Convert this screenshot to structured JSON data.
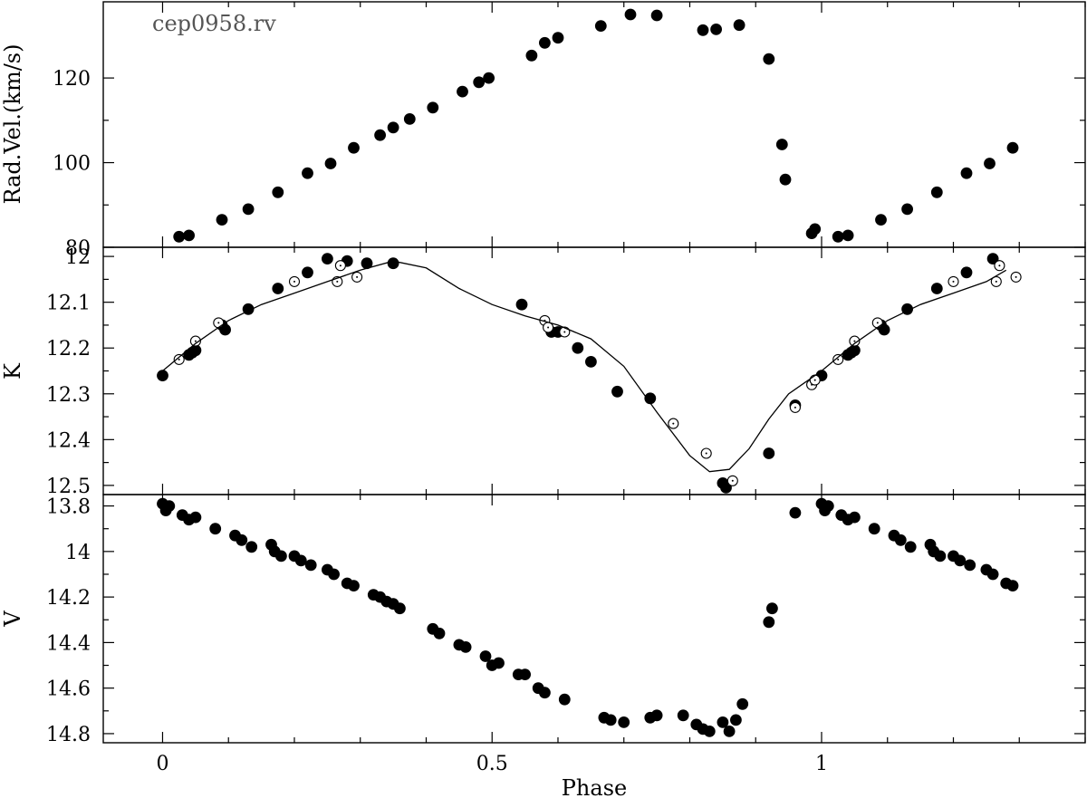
{
  "chart_data": {
    "type": "scatter",
    "xlabel": "Phase",
    "xlim": [
      -0.09,
      1.4
    ],
    "xticks": [
      0,
      0.5,
      1
    ],
    "xticklabels": [
      "0",
      "0.5",
      "1"
    ],
    "colors": {
      "axis": "#000000",
      "marker": "#000000",
      "tag": "#555555"
    },
    "panels": [
      {
        "id": "rv",
        "ylabel": "Rad.Vel.(km/s)",
        "annotation": "cep0958.rv",
        "ylim": [
          80,
          138
        ],
        "inverted": false,
        "yticks": [
          80,
          100,
          120
        ],
        "yticklabels": [
          "80",
          "100",
          "120"
        ],
        "series": [
          {
            "marker": "filled-circle",
            "x": [
              0.025,
              0.04,
              0.09,
              0.13,
              0.175,
              0.22,
              0.255,
              0.29,
              0.33,
              0.35,
              0.375,
              0.41,
              0.455,
              0.48,
              0.495,
              0.56,
              0.58,
              0.6,
              0.665,
              0.71,
              0.75,
              0.82,
              0.84,
              0.875,
              0.92,
              0.94,
              0.945,
              0.985,
              0.99,
              1.025,
              1.04,
              1.09,
              1.13,
              1.175,
              1.22,
              1.255,
              1.29
            ],
            "y": [
              82.5,
              82.8,
              86.5,
              89,
              93,
              97.5,
              99.8,
              103.5,
              106.5,
              108.3,
              110.3,
              113,
              116.8,
              119,
              120,
              125.3,
              128.3,
              129.5,
              132.3,
              135,
              134.8,
              131.3,
              131.5,
              132.5,
              124.5,
              104.3,
              96,
              83.3,
              84.3,
              82.5,
              82.8,
              86.5,
              89,
              93,
              97.5,
              99.8,
              103.5
            ]
          }
        ]
      },
      {
        "id": "K",
        "ylabel": "K",
        "ylim": [
          12.52,
          11.98
        ],
        "inverted": true,
        "yticks": [
          12,
          12.1,
          12.2,
          12.3,
          12.4,
          12.5
        ],
        "yticklabels": [
          "12",
          "12.1",
          "12.2",
          "12.3",
          "12.4",
          "12.5"
        ],
        "series": [
          {
            "marker": "filled-circle",
            "x": [
              0,
              0.04,
              0.045,
              0.05,
              0.09,
              0.095,
              0.13,
              0.175,
              0.22,
              0.25,
              0.28,
              0.31,
              0.35,
              0.545,
              0.59,
              0.6,
              0.63,
              0.65,
              0.69,
              0.74,
              0.85,
              0.855,
              0.92,
              0.96,
              1,
              1.04,
              1.045,
              1.05,
              1.09,
              1.095,
              1.13,
              1.175,
              1.22,
              1.26
            ],
            "y": [
              12.26,
              12.215,
              12.21,
              12.205,
              12.15,
              12.16,
              12.115,
              12.07,
              12.035,
              12.005,
              12.01,
              12.015,
              12.015,
              12.105,
              12.165,
              12.165,
              12.2,
              12.23,
              12.295,
              12.31,
              12.495,
              12.505,
              12.43,
              12.325,
              12.26,
              12.215,
              12.21,
              12.205,
              12.15,
              12.16,
              12.115,
              12.07,
              12.035,
              12.005
            ]
          },
          {
            "marker": "open-circle",
            "x": [
              0.025,
              0.05,
              0.085,
              0.2,
              0.265,
              0.27,
              0.295,
              0.58,
              0.585,
              0.61,
              0.775,
              0.825,
              0.865,
              0.96,
              0.985,
              0.99,
              1.025,
              1.05,
              1.085,
              1.2,
              1.265,
              1.27,
              1.295
            ],
            "y": [
              12.225,
              12.185,
              12.145,
              12.055,
              12.055,
              12.02,
              12.045,
              12.14,
              12.155,
              12.165,
              12.365,
              12.43,
              12.49,
              12.33,
              12.28,
              12.27,
              12.225,
              12.185,
              12.145,
              12.055,
              12.055,
              12.02,
              12.045
            ]
          },
          {
            "marker": "line",
            "x": [
              0,
              0.05,
              0.1,
              0.15,
              0.2,
              0.25,
              0.3,
              0.35,
              0.4,
              0.45,
              0.5,
              0.55,
              0.6,
              0.65,
              0.7,
              0.75,
              0.8,
              0.83,
              0.86,
              0.89,
              0.92,
              0.95,
              1,
              1.05,
              1.1,
              1.15,
              1.2,
              1.25,
              1.28
            ],
            "y": [
              12.25,
              12.19,
              12.14,
              12.105,
              12.08,
              12.055,
              12.03,
              12.01,
              12.025,
              12.07,
              12.105,
              12.13,
              12.15,
              12.18,
              12.24,
              12.34,
              12.435,
              12.47,
              12.465,
              12.42,
              12.355,
              12.3,
              12.25,
              12.19,
              12.14,
              12.105,
              12.08,
              12.055,
              12.03
            ]
          }
        ]
      },
      {
        "id": "V",
        "ylabel": "V",
        "ylim": [
          14.84,
          13.75
        ],
        "inverted": true,
        "yticks": [
          13.8,
          14,
          14.2,
          14.4,
          14.6,
          14.8
        ],
        "yticklabels": [
          "13.8",
          "14",
          "14.2",
          "14.4",
          "14.6",
          "14.8"
        ],
        "series": [
          {
            "marker": "filled-circle",
            "x": [
              0,
              0.005,
              0.01,
              0.03,
              0.04,
              0.05,
              0.08,
              0.11,
              0.12,
              0.135,
              0.165,
              0.17,
              0.18,
              0.2,
              0.21,
              0.225,
              0.25,
              0.26,
              0.28,
              0.29,
              0.32,
              0.33,
              0.34,
              0.35,
              0.36,
              0.41,
              0.42,
              0.45,
              0.46,
              0.49,
              0.5,
              0.51,
              0.54,
              0.55,
              0.57,
              0.58,
              0.61,
              0.67,
              0.68,
              0.7,
              0.74,
              0.75,
              0.79,
              0.81,
              0.82,
              0.83,
              0.85,
              0.86,
              0.87,
              0.88,
              0.92,
              0.925,
              0.96,
              1,
              1.005,
              1.01,
              1.03,
              1.04,
              1.05,
              1.08,
              1.11,
              1.12,
              1.135,
              1.165,
              1.17,
              1.18,
              1.2,
              1.21,
              1.225,
              1.25,
              1.26,
              1.28,
              1.29
            ],
            "y": [
              13.79,
              13.82,
              13.8,
              13.84,
              13.86,
              13.85,
              13.9,
              13.93,
              13.95,
              13.98,
              13.97,
              14,
              14.02,
              14.02,
              14.04,
              14.06,
              14.08,
              14.1,
              14.14,
              14.15,
              14.19,
              14.2,
              14.22,
              14.23,
              14.25,
              14.34,
              14.36,
              14.41,
              14.42,
              14.46,
              14.5,
              14.49,
              14.54,
              14.54,
              14.6,
              14.62,
              14.65,
              14.73,
              14.74,
              14.75,
              14.73,
              14.72,
              14.72,
              14.76,
              14.78,
              14.79,
              14.75,
              14.79,
              14.74,
              14.67,
              14.31,
              14.25,
              13.83,
              13.79,
              13.82,
              13.8,
              13.84,
              13.86,
              13.85,
              13.9,
              13.93,
              13.95,
              13.98,
              13.97,
              14,
              14.02,
              14.02,
              14.04,
              14.06,
              14.08,
              14.1,
              14.14,
              14.15
            ]
          }
        ]
      }
    ]
  }
}
